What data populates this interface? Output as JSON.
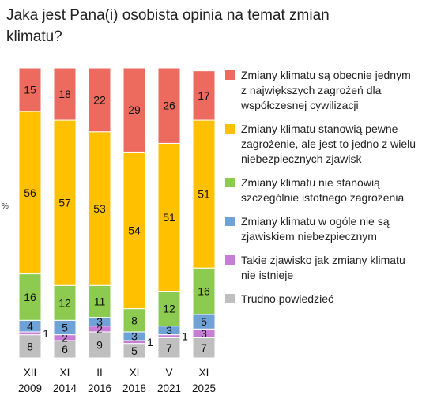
{
  "title": "Jaka jest Pana(i) osobista opinia na temat zmian klimatu?",
  "unit": "%",
  "chart_data": {
    "type": "bar",
    "stacked": true,
    "title": "Jaka jest Pana(i) osobista opinia na temat zmian klimatu?",
    "ylabel": "%",
    "ylim": [
      0,
      100
    ],
    "categories": [
      {
        "line1": "XII",
        "line2": "2009"
      },
      {
        "line1": "XI",
        "line2": "2014"
      },
      {
        "line1": "II",
        "line2": "2016"
      },
      {
        "line1": "XI",
        "line2": "2018"
      },
      {
        "line1": "V",
        "line2": "2021"
      },
      {
        "line1": "XI",
        "line2": "2025"
      }
    ],
    "series": [
      {
        "name": "Zmiany klimatu są obecnie jednym z największych zagrożeń dla współczesnej cywilizacji",
        "color": "#EC6A5E",
        "values": [
          15,
          18,
          22,
          29,
          26,
          17
        ]
      },
      {
        "name": "Zmiany klimatu stanowią pewne zagrożenie, ale jest to jedno z wielu niebezpiecznych zjawisk",
        "color": "#FFC000",
        "values": [
          56,
          57,
          53,
          54,
          51,
          51
        ]
      },
      {
        "name": "Zmiany klimatu nie stanowią szczególnie istotnego zagrożenia",
        "color": "#8CCB4F",
        "values": [
          16,
          12,
          11,
          8,
          12,
          16
        ]
      },
      {
        "name": "Zmiany klimatu w ogóle nie są zjawiskiem niebezpiecznym",
        "color": "#6FA2D6",
        "values": [
          4,
          5,
          3,
          3,
          3,
          5
        ]
      },
      {
        "name": "Takie zjawisko jak zmiany klimatu nie istnieje",
        "color": "#C77DD6",
        "values": [
          1,
          2,
          2,
          1,
          1,
          3
        ]
      },
      {
        "name": "Trudno powiedzieć",
        "color": "#BFBFBF",
        "values": [
          8,
          6,
          9,
          5,
          7,
          7
        ]
      }
    ],
    "legend_position": "right",
    "grid": false
  }
}
